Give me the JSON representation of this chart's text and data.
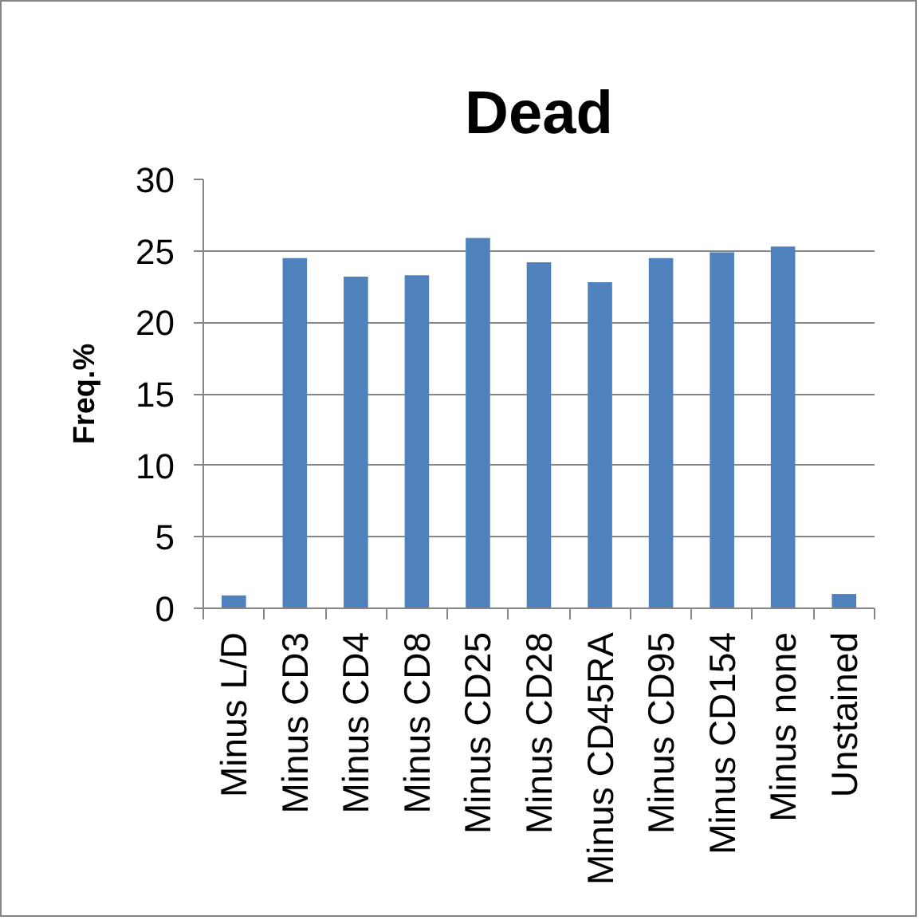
{
  "chart_data": {
    "type": "bar",
    "title": "Dead",
    "ylabel": "Freq.%",
    "categories": [
      "Minus L/D",
      "Minus CD3",
      "Minus CD4",
      "Minus CD8",
      "Minus CD25",
      "Minus CD28",
      "Minus CD45RA",
      "Minus CD95",
      "Minus CD154",
      "Minus none",
      "Unstained"
    ],
    "values": [
      0.9,
      24.5,
      23.2,
      23.3,
      25.9,
      24.2,
      22.8,
      24.5,
      24.9,
      25.3,
      1.0
    ],
    "color": "#4f81bd",
    "ylim": [
      0,
      30
    ],
    "yticks": [
      0,
      5,
      10,
      15,
      20,
      25,
      30
    ],
    "grid": "y"
  }
}
